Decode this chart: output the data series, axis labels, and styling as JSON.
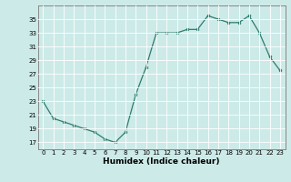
{
  "x": [
    0,
    1,
    2,
    3,
    4,
    5,
    6,
    7,
    8,
    9,
    10,
    11,
    12,
    13,
    14,
    15,
    16,
    17,
    18,
    19,
    20,
    21,
    22,
    23
  ],
  "y": [
    23,
    20.5,
    20,
    19.5,
    19,
    18.5,
    17.5,
    17,
    18.5,
    24,
    28,
    33,
    33,
    33,
    33.5,
    33.5,
    35.5,
    35,
    34.5,
    34.5,
    35.5,
    33,
    29.5,
    27.5
  ],
  "bg_color": "#cceae8",
  "line_color": "#2e7d6e",
  "marker_color": "#2e7d6e",
  "grid_color": "#ffffff",
  "xlabel": "Humidex (Indice chaleur)",
  "yticks": [
    17,
    19,
    21,
    23,
    25,
    27,
    29,
    31,
    33,
    35
  ],
  "xticks": [
    0,
    1,
    2,
    3,
    4,
    5,
    6,
    7,
    8,
    9,
    10,
    11,
    12,
    13,
    14,
    15,
    16,
    17,
    18,
    19,
    20,
    21,
    22,
    23
  ],
  "ylim": [
    16,
    37
  ],
  "xlim": [
    -0.5,
    23.5
  ]
}
